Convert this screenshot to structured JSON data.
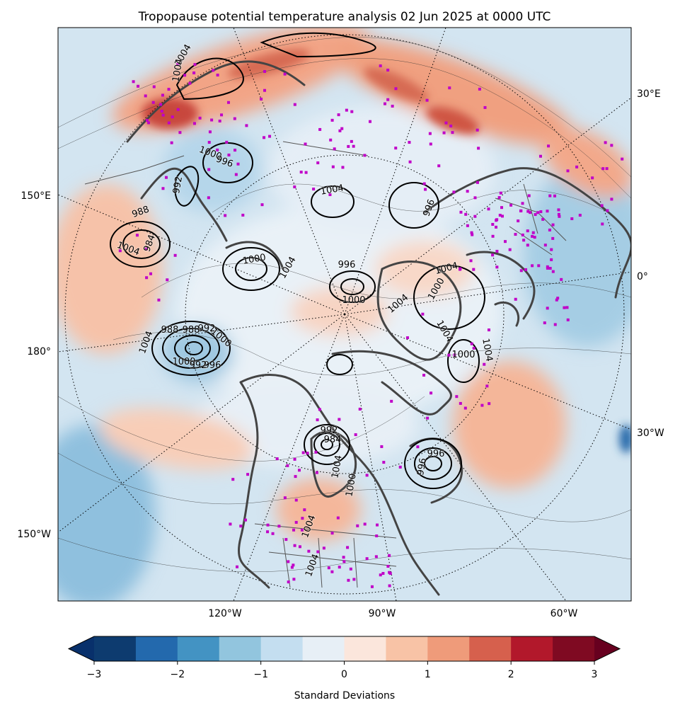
{
  "chart_data": {
    "type": "heatmap",
    "title": "Tropopause potential temperature analysis 02 Jun 2025 at 0000 UTC",
    "projection": "north polar stereographic",
    "fill_variable": "tropopause potential temperature anomaly",
    "fill_units": "Standard Deviations",
    "colorbar": {
      "label": "Standard Deviations",
      "min": -3,
      "max": 3,
      "step": 0.5,
      "extend": "both",
      "ticks": [
        {
          "value": -3,
          "label": "−3"
        },
        {
          "value": -2,
          "label": "−2"
        },
        {
          "value": -1,
          "label": "−1"
        },
        {
          "value": 0,
          "label": "0"
        },
        {
          "value": 1,
          "label": "1"
        },
        {
          "value": 2,
          "label": "2"
        },
        {
          "value": 3,
          "label": "3"
        }
      ],
      "colors": [
        "#0d3b6f",
        "#2369ad",
        "#4393c3",
        "#92c5de",
        "#c4def0",
        "#e7eff6",
        "#fbe6dc",
        "#f8c3a6",
        "#ef9b7a",
        "#d6604d",
        "#b2182b",
        "#7f0a22"
      ],
      "under_color": "#08306b",
      "over_color": "#67001f"
    },
    "pressure_contours": {
      "units": "hPa",
      "labels": [
        "1004",
        "1000",
        "996",
        "992",
        "988",
        "984",
        "1004",
        "1000",
        "1004",
        "1004",
        "996",
        "1000",
        "1004",
        "996",
        "1004",
        "1000",
        "1004",
        "1004",
        "1000",
        "996",
        "992",
        "988",
        "1004",
        "1000",
        "992",
        "988",
        "1004",
        "1000",
        "996",
        "1004",
        "992",
        "996",
        "984",
        "1004",
        "1000",
        "1004"
      ]
    },
    "longitude_labels": {
      "bottom": [
        "120°W",
        "90°W",
        "60°W"
      ],
      "left": [
        "150°E",
        "180°",
        "150°W"
      ],
      "right": [
        "30°E",
        "0°",
        "30°W"
      ]
    },
    "station_marker_color": "#c000c8",
    "coastline_color": "#444444",
    "graticule": "dotted"
  }
}
